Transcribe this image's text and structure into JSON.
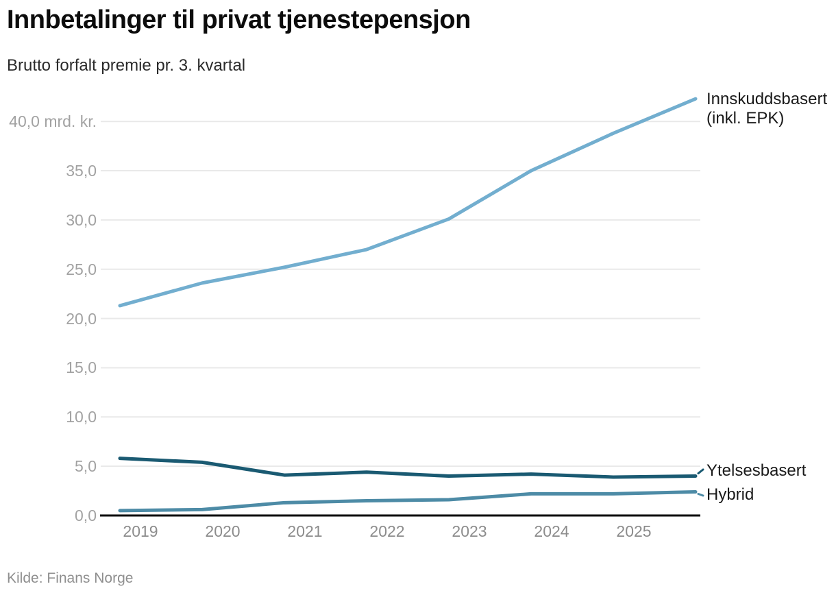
{
  "header": {
    "title": "Innbetalinger til privat tjenestepensjon",
    "subtitle": "Brutto forfalt premie pr. 3. kvartal"
  },
  "source": {
    "label": "Kilde: Finans Norge"
  },
  "chart_data": {
    "type": "line",
    "title": "Innbetalinger til privat tjenestepensjon",
    "subtitle": "Brutto forfalt premie pr. 3. kvartal",
    "unit": "mrd. kr.",
    "x": [
      2018,
      2019,
      2020,
      2021,
      2022,
      2023,
      2024,
      2025
    ],
    "x_offset_years": 0.75,
    "x_tick_labels": [
      "2019",
      "2020",
      "2021",
      "2022",
      "2023",
      "2024",
      "2025"
    ],
    "y_ticks": [
      0,
      5,
      10,
      15,
      20,
      25,
      30,
      35,
      40
    ],
    "y_tick_labels": [
      "0,0",
      "5,0",
      "10,0",
      "15,0",
      "20,0",
      "25,0",
      "30,0",
      "35,0",
      "40,0 mrd. kr."
    ],
    "ylim": [
      0,
      42.5
    ],
    "grid": true,
    "legend_position": "right-of-line-ends",
    "colors": {
      "grid": "#e9e9e9",
      "axis": "#000000",
      "tick_text": "#a2a2a2",
      "label_text": "#1a1a1a"
    },
    "series": [
      {
        "name": "Innskuddsbasert (inkl. EPK)",
        "color": "#72aecf",
        "values": [
          21.3,
          23.6,
          25.2,
          27.0,
          30.1,
          35.0,
          38.8,
          42.3
        ]
      },
      {
        "name": "Ytelsesbasert",
        "color": "#1a5a72",
        "values": [
          5.8,
          5.4,
          4.1,
          4.4,
          4.0,
          4.2,
          3.9,
          4.0
        ]
      },
      {
        "name": "Hybrid",
        "color": "#4d8ba6",
        "values": [
          0.5,
          0.6,
          1.3,
          1.5,
          1.6,
          2.2,
          2.2,
          2.4
        ]
      }
    ]
  }
}
